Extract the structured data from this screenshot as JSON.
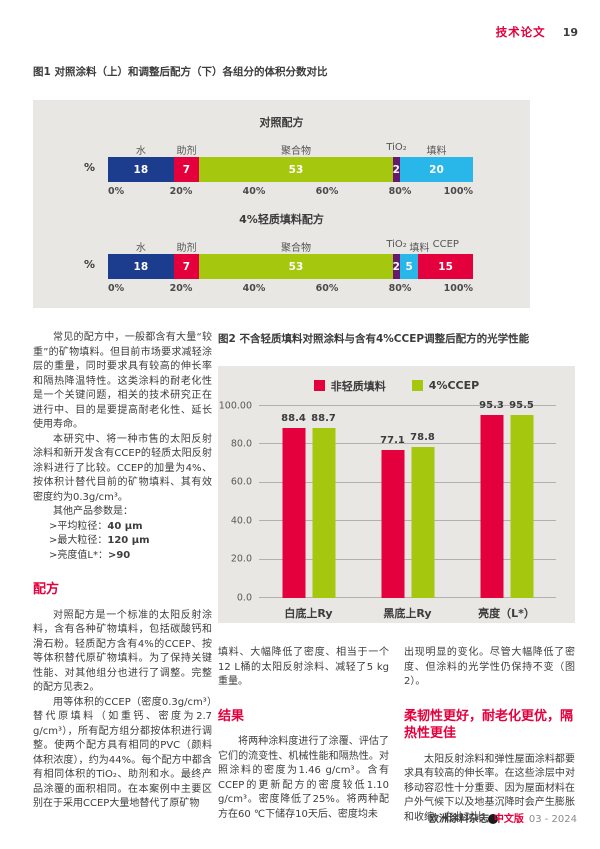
{
  "header": {
    "section": "技术论文",
    "page": "19"
  },
  "figures": {
    "fig1_caption": "图1 对照涂料（上）和调整后配方（下）各组分的体积分数对比",
    "fig2_caption": "图2 不含轻质填料对照涂料与含有4%CCEP调整后配方的光学性能"
  },
  "chart_data": [
    {
      "type": "bar",
      "variant": "stacked-horizontal",
      "unit": "%",
      "x_ticks": [
        "0%",
        "20%",
        "40%",
        "60%",
        "80%",
        "100%"
      ],
      "xlim": [
        0,
        100
      ],
      "bars": [
        {
          "title": "对照配方",
          "segments": [
            {
              "label": "水",
              "value": 18,
              "color": "#1c3c8e"
            },
            {
              "label": "助剂",
              "value": 7,
              "color": "#e3003c"
            },
            {
              "label": "聚合物",
              "value": 53,
              "color": "#a5c70d"
            },
            {
              "label": "TiO₂",
              "value": 2,
              "color": "#68196d"
            },
            {
              "label": "填料",
              "value": 20,
              "color": "#29b6e8"
            }
          ]
        },
        {
          "title": "4%轻质填料配方",
          "segments": [
            {
              "label": "水",
              "value": 18,
              "color": "#1c3c8e"
            },
            {
              "label": "助剂",
              "value": 7,
              "color": "#e3003c"
            },
            {
              "label": "聚合物",
              "value": 53,
              "color": "#a5c70d"
            },
            {
              "label": "TiO₂",
              "value": 2,
              "color": "#68196d"
            },
            {
              "label": "填料",
              "value": 5,
              "color": "#29b6e8"
            },
            {
              "label": "CCEP",
              "value": 15,
              "color": "#e3003c"
            }
          ]
        }
      ]
    },
    {
      "type": "bar",
      "variant": "grouped-vertical",
      "categories": [
        "白底上Ry",
        "黑底上Ry",
        "亮度（L*）"
      ],
      "series": [
        {
          "name": "非轻质填料",
          "color": "#e3003c",
          "values": [
            88.4,
            77.1,
            95.3
          ]
        },
        {
          "name": "4%CCEP",
          "color": "#a5c70d",
          "values": [
            88.7,
            78.8,
            95.5
          ]
        }
      ],
      "ylim": [
        0,
        100
      ],
      "y_ticks": [
        100,
        80,
        60,
        40,
        20,
        0
      ],
      "y_tick_labels": [
        "100.00",
        "80.0",
        "60.0",
        "40.0",
        "20.0",
        "0.0"
      ],
      "grid": true,
      "legend_position": "top-center"
    }
  ],
  "article": {
    "left": {
      "p1": "常见的配方中，一般都含有大量“较重”的矿物填料。但目前市场要求减轻涂层的重量，同时要求具有较高的伸长率和隔热降温特性。这类涂料的耐老化性是一个关键问题，相关的技术研究正在进行中、目的是要提高耐老化性、延长使用寿命。",
      "p2": "本研究中、将一种市售的太阳反射涂料和新开发含有CCEP的轻质太阳反射涂料进行了比较。CCEP的加量为4%、按体积计替代目前的矿物填料、其有效密度约为0.3g/cm³。",
      "params_intro": "其他产品参数是：",
      "params": [
        {
          "label": ">平均粒径：",
          "value": "40 μm"
        },
        {
          "label": ">最大粒径：",
          "value": "120 μm"
        },
        {
          "label": ">亮度值L*：",
          "value": ">90"
        }
      ],
      "heading": "配方",
      "p3": "对照配方是一个标准的太阳反射涂料，含有各种矿物填料，包括碳酸钙和滑石粉。轻质配方含有4%的CCEP、按等体积替代原矿物填料。为了保持关键性能、对其他组分也进行了调整。完整的配方见表2。",
      "p4": "用等体积的CCEP（密度0.3g/cm³）替代原填料（如重钙、密度为2.7 g/cm³），所有配方组分都按体积进行调整。使两个配方具有相同的PVC（颜料体积浓度），约为44%。每个配方中都含有相同体积的TiO₂、助剂和水。最终产品涂覆的面积相同。在本案例中主要区别在于采用CCEP大量地替代了原矿物"
    },
    "middle": {
      "p1": "填料、大幅降低了密度、相当于一个12 L桶的太阳反射涂料、减轻了5 kg重量。",
      "heading": "结果",
      "p2": "将两种涂料度进行了涂覆、评估了它们的流变性、机械性能和隔热性。对照涂料的密度为1.46 g/cm³。含有CCEP的更新配方的密度较低1.10 g/cm³。密度降低了25%。将两种配方在60 ℃下储存10天后、密度均未"
    },
    "right": {
      "p1": "出现明显的变化。尽管大幅降低了密度、但涂料的光学性仍保持不变（图2）。",
      "heading": "柔韧性更好，耐老化更优，隔热性更佳",
      "p2": "太阳反射涂料和弹性屋面涂料都要求具有较高的伸长率。在这些涂层中对移动容忍性十分重要、因为屋面材料在户外气候下以及地基沉降时会产生膨胀和收缩。在此对比",
      "continued_glyph": "›"
    }
  },
  "footer": {
    "journal": "欧洲涂料杂志",
    "edition": "中文版",
    "issue": "03 - 2024"
  },
  "colors": {
    "accent_red": "#e3003c",
    "figure_bg": "#e9e7e4",
    "water_blue": "#1c3c8e",
    "additive_red": "#e3003c",
    "polymer_green": "#a5c70d",
    "tio2_purple": "#68196d",
    "filler_cyan": "#29b6e8"
  }
}
